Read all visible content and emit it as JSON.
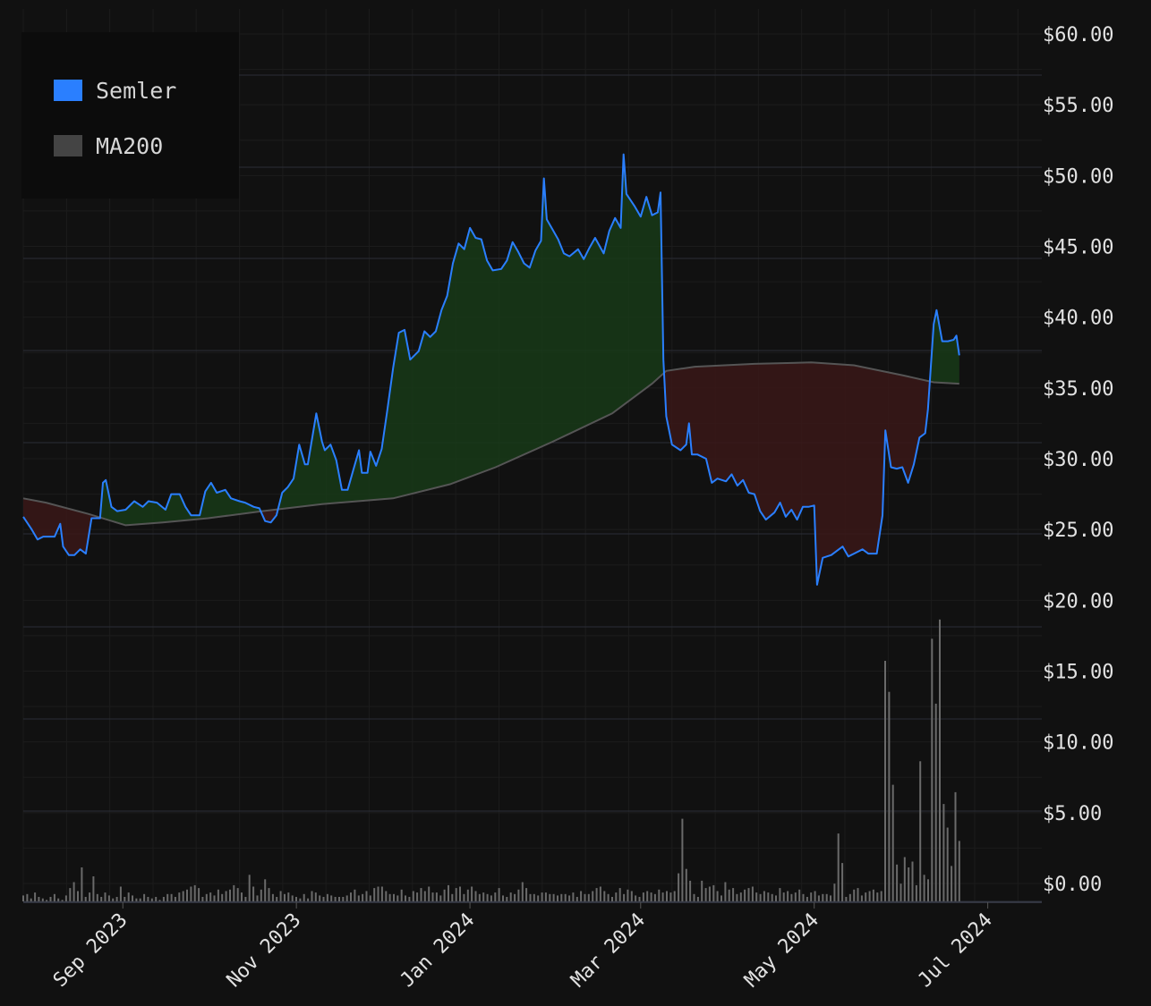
{
  "chart_data": {
    "type": "line",
    "title": "",
    "xlabel": "",
    "ylabel": "",
    "legend": {
      "placement": "top-left",
      "entries": [
        {
          "label": "Semler",
          "color": "#2a7fff"
        },
        {
          "label": "MA200",
          "color": "#444444"
        }
      ]
    },
    "x_range": [
      "2023-07-28",
      "2024-07-20"
    ],
    "ylim": [
      0,
      60
    ],
    "y_tick_labels": [
      "$0.00",
      "$5.00",
      "$10.00",
      "$15.00",
      "$20.00",
      "$25.00",
      "$30.00",
      "$35.00",
      "$40.00",
      "$45.00",
      "$50.00",
      "$55.00",
      "$60.00"
    ],
    "x_tick_labels": [
      "Sep 2023",
      "Nov 2023",
      "Jan 2024",
      "Mar 2024",
      "May 2024",
      "Jul 2024"
    ],
    "x_tick_dates": [
      "2023-09-01",
      "2023-11-01",
      "2024-01-01",
      "2024-03-01",
      "2024-05-01",
      "2024-07-01"
    ],
    "grid": true,
    "colors": {
      "price": "#2a7fff",
      "ma": "#555555",
      "above_fill": "#173a17",
      "below_fill": "#3a1717",
      "volume": "#6a6a6a",
      "background": "#111111"
    },
    "series": [
      {
        "name": "Semler",
        "color": "#2a7fff",
        "points": [
          [
            "2023-07-28",
            25.9
          ],
          [
            "2023-07-31",
            25.0
          ],
          [
            "2023-08-02",
            24.3
          ],
          [
            "2023-08-04",
            24.5
          ],
          [
            "2023-08-08",
            24.5
          ],
          [
            "2023-08-10",
            25.4
          ],
          [
            "2023-08-11",
            23.8
          ],
          [
            "2023-08-13",
            23.2
          ],
          [
            "2023-08-15",
            23.2
          ],
          [
            "2023-08-17",
            23.6
          ],
          [
            "2023-08-19",
            23.3
          ],
          [
            "2023-08-21",
            25.8
          ],
          [
            "2023-08-24",
            25.8
          ],
          [
            "2023-08-25",
            28.3
          ],
          [
            "2023-08-26",
            28.5
          ],
          [
            "2023-08-28",
            26.6
          ],
          [
            "2023-08-30",
            26.3
          ],
          [
            "2023-09-02",
            26.4
          ],
          [
            "2023-09-05",
            27.0
          ],
          [
            "2023-09-08",
            26.6
          ],
          [
            "2023-09-10",
            27.0
          ],
          [
            "2023-09-13",
            26.9
          ],
          [
            "2023-09-16",
            26.4
          ],
          [
            "2023-09-18",
            27.5
          ],
          [
            "2023-09-21",
            27.5
          ],
          [
            "2023-09-23",
            26.6
          ],
          [
            "2023-09-25",
            26.0
          ],
          [
            "2023-09-28",
            26.0
          ],
          [
            "2023-09-30",
            27.7
          ],
          [
            "2023-10-02",
            28.3
          ],
          [
            "2023-10-04",
            27.6
          ],
          [
            "2023-10-07",
            27.8
          ],
          [
            "2023-10-09",
            27.2
          ],
          [
            "2023-10-12",
            27.0
          ],
          [
            "2023-10-14",
            26.9
          ],
          [
            "2023-10-17",
            26.6
          ],
          [
            "2023-10-19",
            26.5
          ],
          [
            "2023-10-21",
            25.6
          ],
          [
            "2023-10-23",
            25.5
          ],
          [
            "2023-10-25",
            26.0
          ],
          [
            "2023-10-27",
            27.6
          ],
          [
            "2023-10-29",
            28.0
          ],
          [
            "2023-10-31",
            28.6
          ],
          [
            "2023-11-02",
            31.0
          ],
          [
            "2023-11-04",
            29.6
          ],
          [
            "2023-11-05",
            29.6
          ],
          [
            "2023-11-08",
            33.2
          ],
          [
            "2023-11-10",
            31.2
          ],
          [
            "2023-11-11",
            30.6
          ],
          [
            "2023-11-13",
            31.0
          ],
          [
            "2023-11-15",
            29.9
          ],
          [
            "2023-11-17",
            27.8
          ],
          [
            "2023-11-19",
            27.8
          ],
          [
            "2023-11-21",
            29.2
          ],
          [
            "2023-11-23",
            30.6
          ],
          [
            "2023-11-24",
            29.0
          ],
          [
            "2023-11-26",
            29.0
          ],
          [
            "2023-11-27",
            30.5
          ],
          [
            "2023-11-29",
            29.5
          ],
          [
            "2023-12-01",
            30.7
          ],
          [
            "2023-12-03",
            33.5
          ],
          [
            "2023-12-05",
            36.4
          ],
          [
            "2023-12-07",
            38.9
          ],
          [
            "2023-12-09",
            39.1
          ],
          [
            "2023-12-11",
            37.0
          ],
          [
            "2023-12-14",
            37.6
          ],
          [
            "2023-12-16",
            39.0
          ],
          [
            "2023-12-18",
            38.6
          ],
          [
            "2023-12-20",
            39.0
          ],
          [
            "2023-12-22",
            40.5
          ],
          [
            "2023-12-24",
            41.5
          ],
          [
            "2023-12-26",
            43.8
          ],
          [
            "2023-12-28",
            45.2
          ],
          [
            "2023-12-30",
            44.8
          ],
          [
            "2024-01-01",
            46.3
          ],
          [
            "2024-01-03",
            45.6
          ],
          [
            "2024-01-05",
            45.5
          ],
          [
            "2024-01-07",
            44.0
          ],
          [
            "2024-01-09",
            43.3
          ],
          [
            "2024-01-12",
            43.4
          ],
          [
            "2024-01-14",
            44.0
          ],
          [
            "2024-01-16",
            45.3
          ],
          [
            "2024-01-18",
            44.6
          ],
          [
            "2024-01-20",
            43.8
          ],
          [
            "2024-01-22",
            43.5
          ],
          [
            "2024-01-24",
            44.7
          ],
          [
            "2024-01-26",
            45.4
          ],
          [
            "2024-01-27",
            49.8
          ],
          [
            "2024-01-28",
            46.9
          ],
          [
            "2024-01-30",
            46.2
          ],
          [
            "2024-02-01",
            45.5
          ],
          [
            "2024-02-03",
            44.5
          ],
          [
            "2024-02-05",
            44.3
          ],
          [
            "2024-02-08",
            44.8
          ],
          [
            "2024-02-10",
            44.1
          ],
          [
            "2024-02-12",
            44.9
          ],
          [
            "2024-02-14",
            45.6
          ],
          [
            "2024-02-17",
            44.5
          ],
          [
            "2024-02-19",
            46.1
          ],
          [
            "2024-02-21",
            47.0
          ],
          [
            "2024-02-23",
            46.3
          ],
          [
            "2024-02-24",
            51.5
          ],
          [
            "2024-02-25",
            48.7
          ],
          [
            "2024-02-28",
            47.8
          ],
          [
            "2024-03-01",
            47.1
          ],
          [
            "2024-03-03",
            48.5
          ],
          [
            "2024-03-05",
            47.2
          ],
          [
            "2024-03-07",
            47.4
          ],
          [
            "2024-03-08",
            48.8
          ],
          [
            "2024-03-09",
            37.0
          ],
          [
            "2024-03-10",
            33.0
          ],
          [
            "2024-03-12",
            31.0
          ],
          [
            "2024-03-15",
            30.6
          ],
          [
            "2024-03-17",
            31.0
          ],
          [
            "2024-03-18",
            32.5
          ],
          [
            "2024-03-19",
            30.3
          ],
          [
            "2024-03-21",
            30.3
          ],
          [
            "2024-03-24",
            30.0
          ],
          [
            "2024-03-26",
            28.3
          ],
          [
            "2024-03-28",
            28.6
          ],
          [
            "2024-03-31",
            28.4
          ],
          [
            "2024-04-02",
            28.9
          ],
          [
            "2024-04-04",
            28.1
          ],
          [
            "2024-04-06",
            28.5
          ],
          [
            "2024-04-08",
            27.6
          ],
          [
            "2024-04-10",
            27.5
          ],
          [
            "2024-04-12",
            26.3
          ],
          [
            "2024-04-14",
            25.7
          ],
          [
            "2024-04-17",
            26.2
          ],
          [
            "2024-04-19",
            26.9
          ],
          [
            "2024-04-21",
            25.9
          ],
          [
            "2024-04-23",
            26.4
          ],
          [
            "2024-04-25",
            25.7
          ],
          [
            "2024-04-27",
            26.6
          ],
          [
            "2024-04-29",
            26.6
          ],
          [
            "2024-05-01",
            26.7
          ],
          [
            "2024-05-02",
            21.1
          ],
          [
            "2024-05-04",
            23.0
          ],
          [
            "2024-05-07",
            23.2
          ],
          [
            "2024-05-09",
            23.5
          ],
          [
            "2024-05-11",
            23.8
          ],
          [
            "2024-05-13",
            23.1
          ],
          [
            "2024-05-15",
            23.3
          ],
          [
            "2024-05-18",
            23.6
          ],
          [
            "2024-05-20",
            23.3
          ],
          [
            "2024-05-23",
            23.3
          ],
          [
            "2024-05-25",
            26.0
          ],
          [
            "2024-05-26",
            32.0
          ],
          [
            "2024-05-28",
            29.4
          ],
          [
            "2024-05-30",
            29.3
          ],
          [
            "2024-06-01",
            29.4
          ],
          [
            "2024-06-03",
            28.3
          ],
          [
            "2024-06-05",
            29.6
          ],
          [
            "2024-06-07",
            31.5
          ],
          [
            "2024-06-09",
            31.8
          ],
          [
            "2024-06-10",
            33.5
          ],
          [
            "2024-06-11",
            36.5
          ],
          [
            "2024-06-12",
            39.5
          ],
          [
            "2024-06-13",
            40.5
          ],
          [
            "2024-06-15",
            38.3
          ],
          [
            "2024-06-17",
            38.3
          ],
          [
            "2024-06-19",
            38.4
          ],
          [
            "2024-06-20",
            38.7
          ],
          [
            "2024-06-21",
            37.3
          ]
        ]
      },
      {
        "name": "MA200",
        "color": "#555555",
        "points": [
          [
            "2023-07-28",
            27.2
          ],
          [
            "2023-08-05",
            26.9
          ],
          [
            "2023-08-20",
            26.1
          ],
          [
            "2023-09-02",
            25.3
          ],
          [
            "2023-09-15",
            25.5
          ],
          [
            "2023-10-01",
            25.8
          ],
          [
            "2023-10-20",
            26.3
          ],
          [
            "2023-11-10",
            26.8
          ],
          [
            "2023-12-05",
            27.2
          ],
          [
            "2023-12-25",
            28.2
          ],
          [
            "2024-01-10",
            29.4
          ],
          [
            "2024-01-30",
            31.2
          ],
          [
            "2024-02-20",
            33.2
          ],
          [
            "2024-03-05",
            35.3
          ],
          [
            "2024-03-10",
            36.2
          ],
          [
            "2024-03-20",
            36.5
          ],
          [
            "2024-04-10",
            36.7
          ],
          [
            "2024-04-30",
            36.8
          ],
          [
            "2024-05-15",
            36.6
          ],
          [
            "2024-06-01",
            35.9
          ],
          [
            "2024-06-12",
            35.4
          ],
          [
            "2024-06-21",
            35.3
          ]
        ]
      }
    ],
    "volume": {
      "values": [
        0.4,
        0.5,
        0.2,
        0.6,
        0.3,
        0.2,
        0.1,
        0.3,
        0.5,
        0.2,
        0.1,
        0.4,
        0.9,
        1.3,
        0.7,
        2.3,
        0.3,
        0.6,
        1.7,
        0.5,
        0.3,
        0.6,
        0.4,
        0.2,
        0.3,
        1.0,
        0.3,
        0.6,
        0.4,
        0.2,
        0.2,
        0.5,
        0.3,
        0.2,
        0.3,
        0.1,
        0.3,
        0.5,
        0.5,
        0.3,
        0.6,
        0.7,
        0.8,
        1.0,
        1.1,
        0.9,
        0.3,
        0.5,
        0.6,
        0.4,
        0.8,
        0.5,
        0.7,
        0.8,
        1.1,
        0.9,
        0.6,
        0.3,
        1.8,
        1.0,
        0.4,
        0.8,
        1.5,
        0.9,
        0.5,
        0.3,
        0.7,
        0.5,
        0.6,
        0.4,
        0.3,
        0.2,
        0.5,
        0.2,
        0.7,
        0.6,
        0.4,
        0.3,
        0.5,
        0.4,
        0.3,
        0.3,
        0.3,
        0.4,
        0.6,
        0.8,
        0.4,
        0.5,
        0.7,
        0.4,
        0.9,
        1.0,
        1.0,
        0.7,
        0.5,
        0.5,
        0.4,
        0.8,
        0.4,
        0.3,
        0.7,
        0.6,
        0.9,
        0.7,
        1.0,
        0.6,
        0.6,
        0.4,
        0.8,
        1.1,
        0.5,
        0.9,
        1.0,
        0.5,
        0.8,
        1.0,
        0.7,
        0.5,
        0.6,
        0.5,
        0.4,
        0.6,
        0.9,
        0.4,
        0.3,
        0.6,
        0.5,
        0.8,
        1.3,
        0.9,
        0.5,
        0.5,
        0.4,
        0.6,
        0.6,
        0.5,
        0.5,
        0.4,
        0.5,
        0.5,
        0.4,
        0.6,
        0.3,
        0.7,
        0.5,
        0.5,
        0.7,
        0.9,
        1.0,
        0.7,
        0.5,
        0.3,
        0.6,
        0.9,
        0.5,
        0.8,
        0.7,
        0.4,
        0.3,
        0.6,
        0.7,
        0.6,
        0.5,
        0.8,
        0.6,
        0.7,
        0.6,
        0.7,
        1.9,
        5.6,
        2.2,
        1.4,
        0.5,
        0.3,
        1.4,
        0.9,
        1.0,
        1.1,
        0.7,
        0.4,
        1.3,
        0.8,
        0.9,
        0.5,
        0.6,
        0.8,
        0.9,
        1.0,
        0.6,
        0.5,
        0.7,
        0.6,
        0.5,
        0.4,
        0.9,
        0.6,
        0.7,
        0.5,
        0.6,
        0.8,
        0.5,
        0.3,
        0.6,
        0.7,
        0.4,
        0.5,
        0.5,
        0.4,
        1.2,
        4.6,
        2.6,
        0.3,
        0.5,
        0.8,
        0.9,
        0.4,
        0.6,
        0.7,
        0.8,
        0.6,
        0.7,
        16.3,
        14.2,
        7.9,
        2.5,
        1.2,
        3.0,
        2.3,
        2.7,
        1.1,
        9.5,
        1.8,
        1.5,
        17.8,
        13.4,
        19.1,
        6.6,
        5.0,
        2.4,
        7.4,
        4.1
      ]
    }
  }
}
